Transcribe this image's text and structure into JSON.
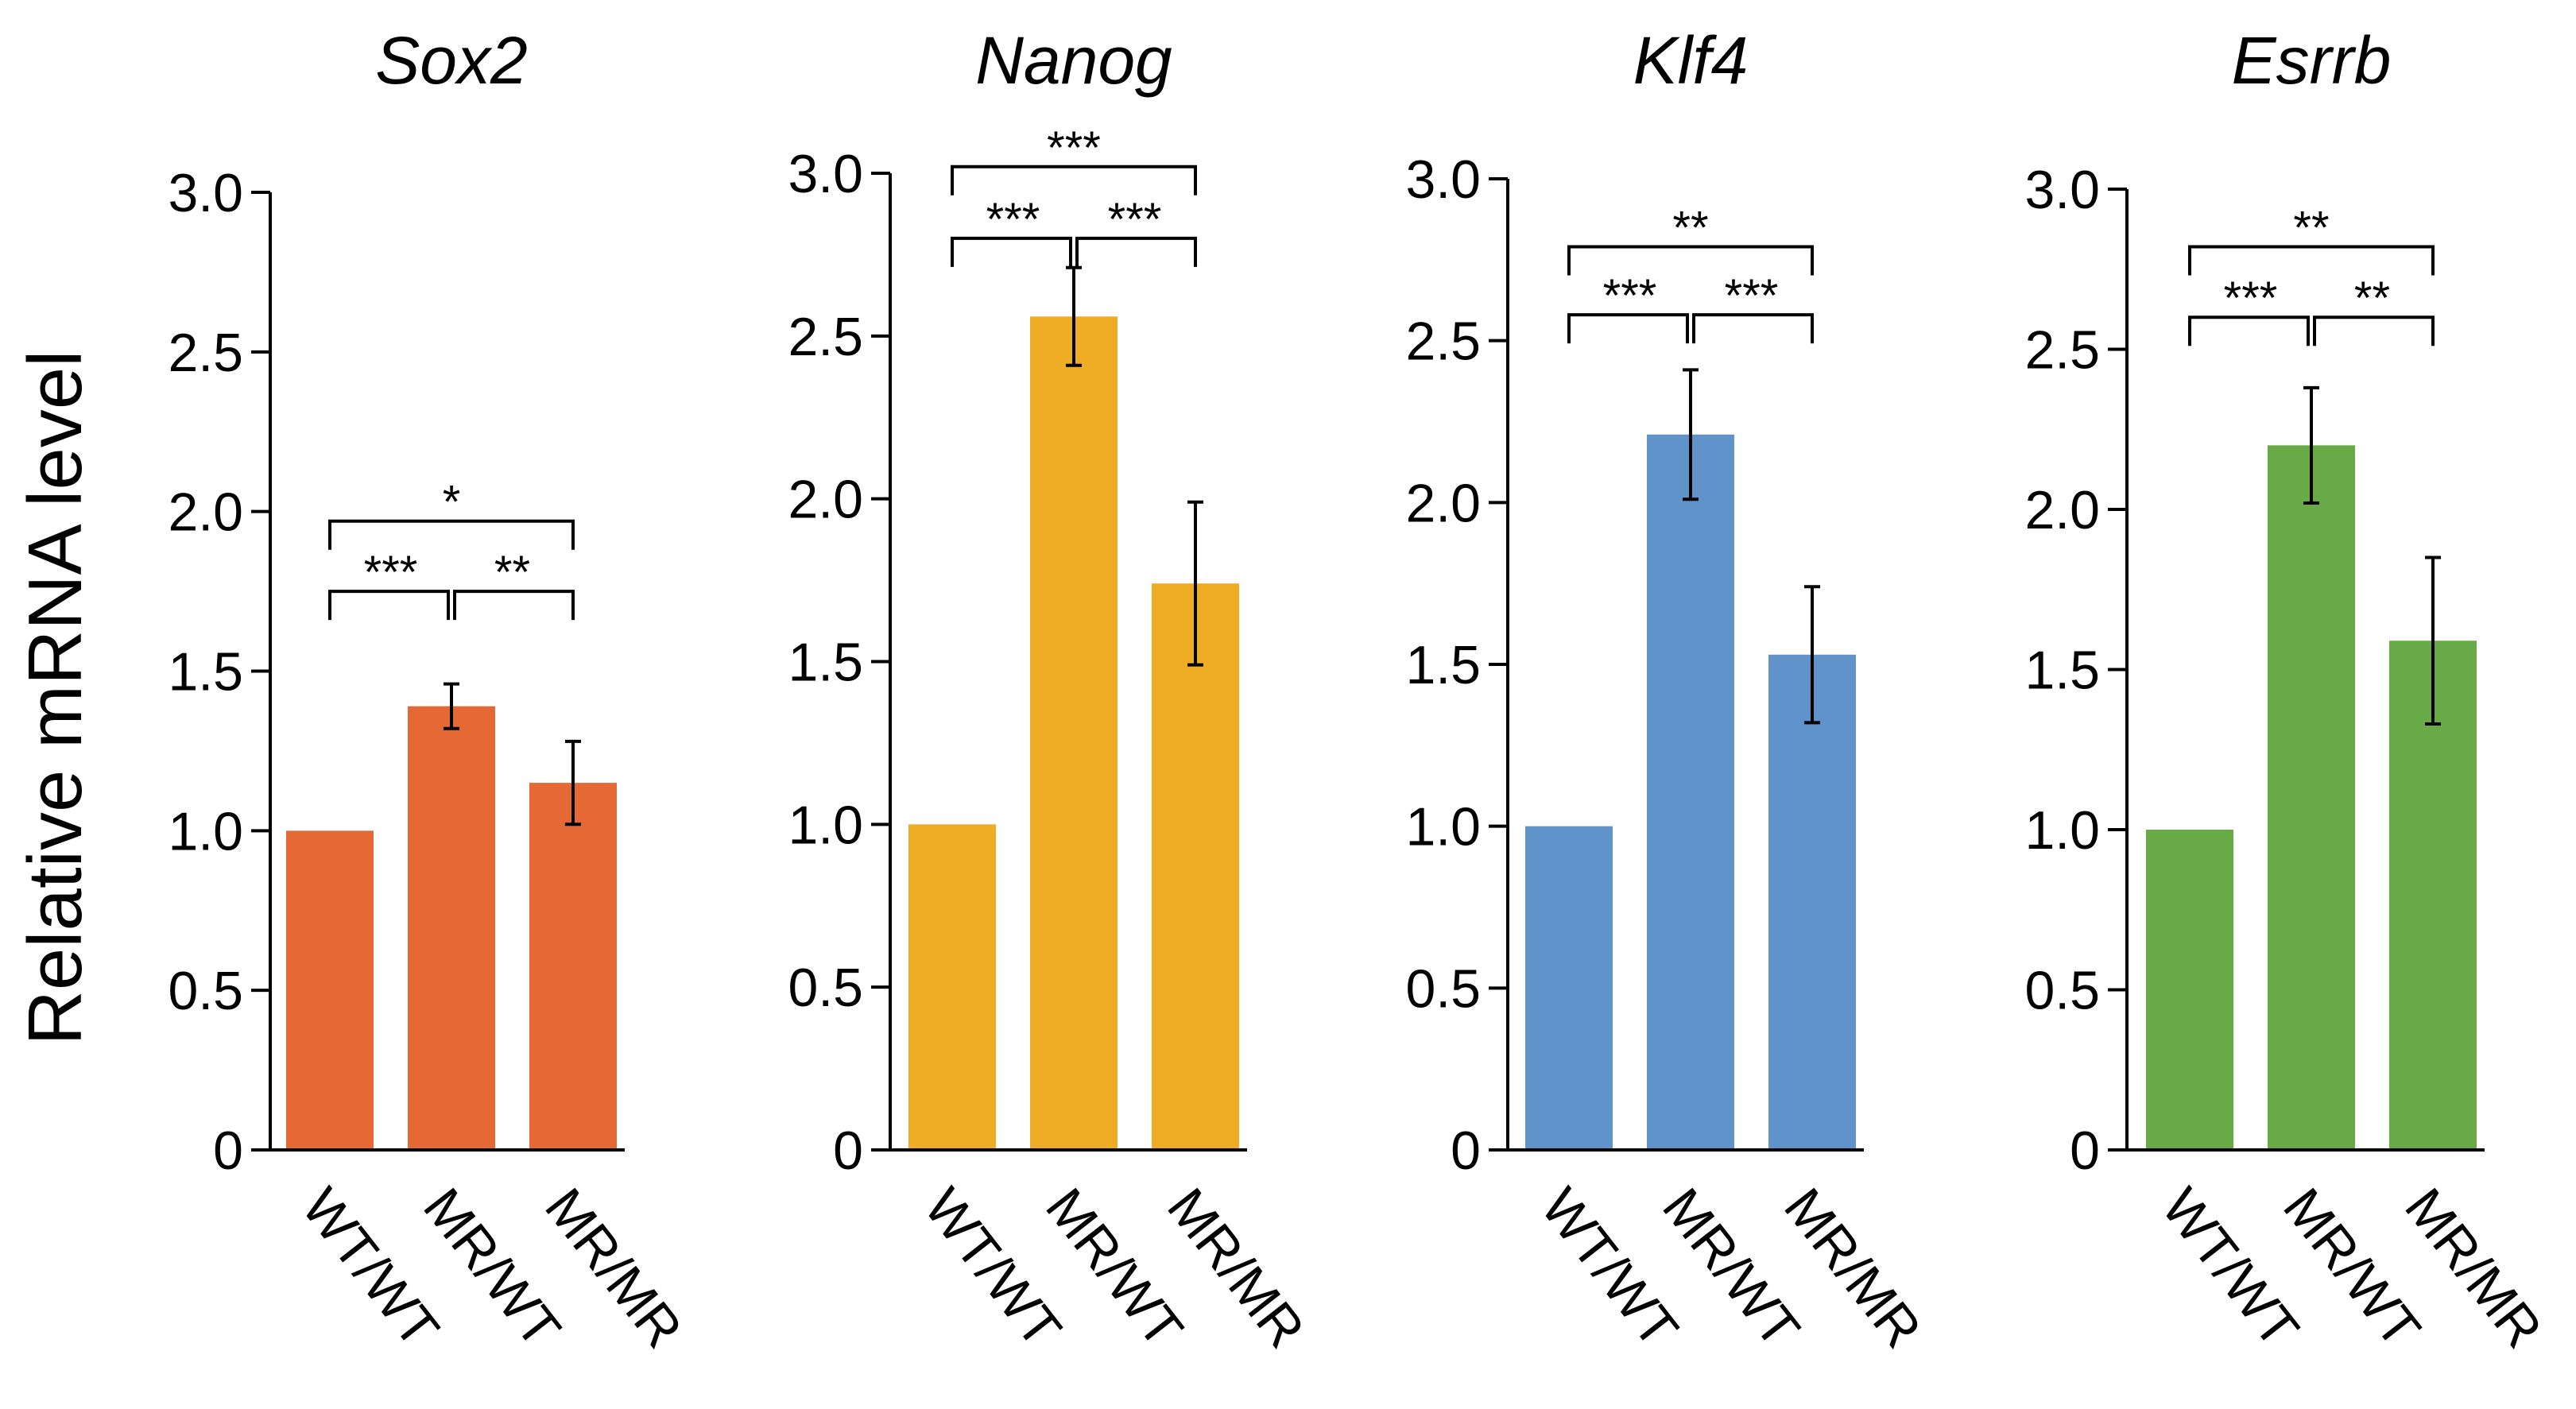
{
  "figure": {
    "ylabel": "Relative mRNA level"
  },
  "chart_data": [
    {
      "type": "bar",
      "title": "Sox2",
      "color": "#E56934",
      "categories": [
        "WT/WT",
        "MR/WT",
        "MR/MR"
      ],
      "values": [
        1.0,
        1.39,
        1.15
      ],
      "errors": [
        0,
        0.07,
        0.13
      ],
      "ylim": [
        0,
        3.0
      ],
      "yticks": [
        "0",
        "0.5",
        "1.0",
        "1.5",
        "2.0",
        "2.5",
        "3.0"
      ],
      "ylabel": "Relative mRNA level",
      "significance": [
        {
          "from": 0,
          "to": 1,
          "label": "***",
          "level": 1.75
        },
        {
          "from": 1,
          "to": 2,
          "label": "**",
          "level": 1.75
        },
        {
          "from": 0,
          "to": 2,
          "label": "*",
          "level": 1.97
        }
      ]
    },
    {
      "type": "bar",
      "title": "Nanog",
      "color": "#EFAD25",
      "categories": [
        "WT/WT",
        "MR/WT",
        "MR/MR"
      ],
      "values": [
        1.0,
        2.56,
        1.74
      ],
      "errors": [
        0,
        0.15,
        0.25
      ],
      "ylim": [
        0,
        3.0
      ],
      "yticks": [
        "0",
        "0.5",
        "1.0",
        "1.5",
        "2.0",
        "2.5",
        "3.0"
      ],
      "ylabel": "",
      "significance": [
        {
          "from": 0,
          "to": 1,
          "label": "***",
          "level": 2.8
        },
        {
          "from": 1,
          "to": 2,
          "label": "***",
          "level": 2.8
        },
        {
          "from": 0,
          "to": 2,
          "label": "***",
          "level": 3.02
        }
      ]
    },
    {
      "type": "bar",
      "title": "Klf4",
      "color": "#6193CB",
      "categories": [
        "WT/WT",
        "MR/WT",
        "MR/MR"
      ],
      "values": [
        1.0,
        2.21,
        1.53
      ],
      "errors": [
        0,
        0.2,
        0.21
      ],
      "ylim": [
        0,
        3.0
      ],
      "yticks": [
        "0",
        "0.5",
        "1.0",
        "1.5",
        "2.0",
        "2.5",
        "3.0"
      ],
      "ylabel": "",
      "significance": [
        {
          "from": 0,
          "to": 1,
          "label": "***",
          "level": 2.58
        },
        {
          "from": 1,
          "to": 2,
          "label": "***",
          "level": 2.58
        },
        {
          "from": 0,
          "to": 2,
          "label": "**",
          "level": 2.79
        }
      ]
    },
    {
      "type": "bar",
      "title": "Esrrb",
      "color": "#68AB46",
      "categories": [
        "WT/WT",
        "MR/WT",
        "MR/MR"
      ],
      "values": [
        1.0,
        2.2,
        1.59
      ],
      "errors": [
        0,
        0.18,
        0.26
      ],
      "ylim": [
        0,
        3.0
      ],
      "yticks": [
        "0",
        "0.5",
        "1.0",
        "1.5",
        "2.0",
        "2.5",
        "3.0"
      ],
      "ylabel": "",
      "significance": [
        {
          "from": 0,
          "to": 1,
          "label": "***",
          "level": 2.6
        },
        {
          "from": 1,
          "to": 2,
          "label": "**",
          "level": 2.6
        },
        {
          "from": 0,
          "to": 2,
          "label": "**",
          "level": 2.82
        }
      ]
    }
  ]
}
